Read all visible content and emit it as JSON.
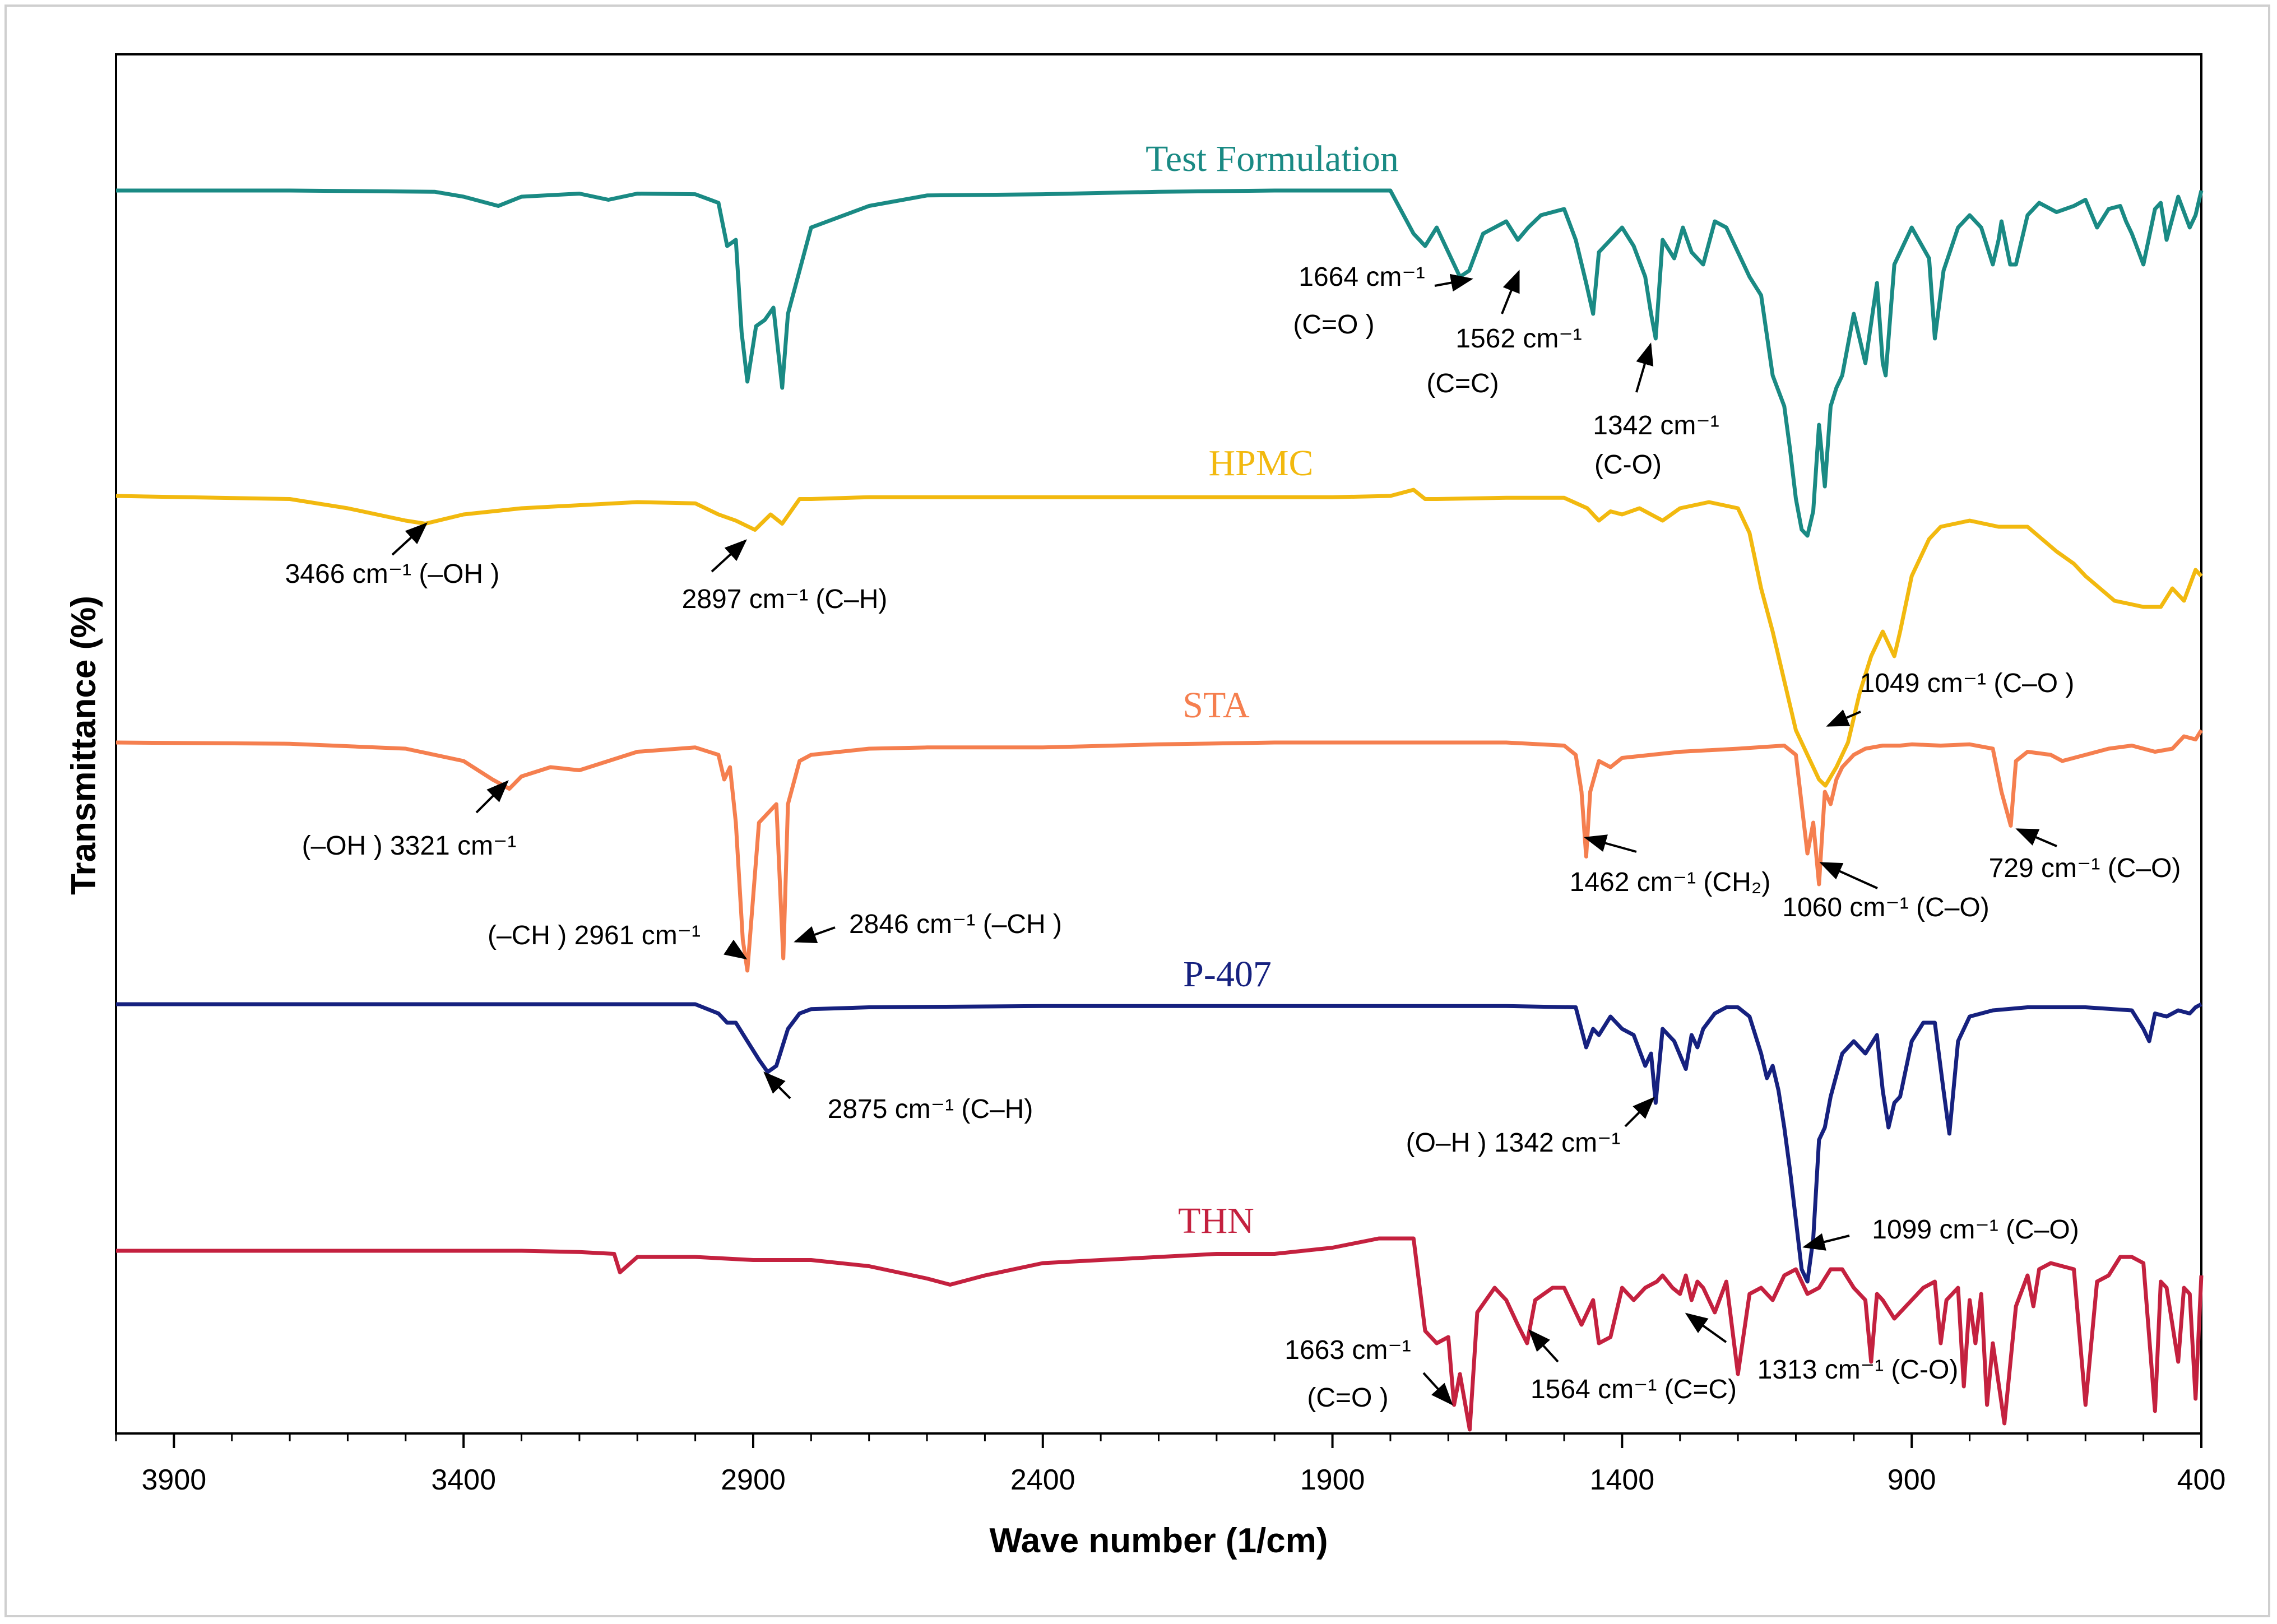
{
  "chart_data": {
    "type": "line",
    "xlabel": "Wave number (1/cm)",
    "ylabel": "Transmittance (%)",
    "xlim": [
      4000,
      400
    ],
    "x_ticks": [
      3900,
      3400,
      2900,
      2400,
      1900,
      1400,
      900,
      400
    ],
    "x_tick_labels": [
      "3900",
      "3400",
      "2900",
      "2400",
      "1900",
      "1400",
      "900",
      "400"
    ],
    "y_ticks_shown": false,
    "grid": false,
    "legend": "none (series labeled directly above each trace)",
    "y_scale_note": "stacked traces, relative transmittance (0 = baseline of trace, negative = absorption depth)",
    "series": [
      {
        "name": "Test Formulation",
        "color": "#1a8a84",
        "x": [
          4000,
          3700,
          3450,
          3400,
          3340,
          3300,
          3200,
          3150,
          3100,
          3000,
          2960,
          2945,
          2930,
          2920,
          2910,
          2895,
          2880,
          2865,
          2850,
          2840,
          2800,
          2700,
          2600,
          2400,
          2200,
          2000,
          1800,
          1760,
          1740,
          1720,
          1700,
          1680,
          1664,
          1640,
          1600,
          1580,
          1562,
          1540,
          1500,
          1480,
          1462,
          1450,
          1440,
          1420,
          1400,
          1380,
          1360,
          1350,
          1342,
          1330,
          1310,
          1295,
          1280,
          1260,
          1240,
          1220,
          1200,
          1180,
          1160,
          1140,
          1120,
          1110,
          1100,
          1090,
          1080,
          1070,
          1060,
          1050,
          1040,
          1030,
          1020,
          1000,
          980,
          960,
          950,
          945,
          930,
          900,
          870,
          860,
          845,
          820,
          800,
          780,
          760,
          750,
          745,
          730,
          720,
          700,
          680,
          650,
          620,
          600,
          580,
          560,
          540,
          530,
          520,
          500,
          480,
          470,
          460,
          440,
          420,
          410,
          400
        ],
        "y": [
          0,
          0,
          -2,
          -10,
          -25,
          -10,
          -5,
          -15,
          -5,
          -6,
          -20,
          -90,
          -80,
          -230,
          -310,
          -220,
          -210,
          -190,
          -320,
          -200,
          -60,
          -25,
          -8,
          -6,
          -2,
          0,
          0,
          -70,
          -90,
          -60,
          -100,
          -140,
          -130,
          -70,
          -50,
          -80,
          -60,
          -40,
          -30,
          -80,
          -150,
          -200,
          -100,
          -80,
          -60,
          -90,
          -140,
          -200,
          -240,
          -80,
          -110,
          -60,
          -100,
          -120,
          -50,
          -60,
          -100,
          -140,
          -170,
          -300,
          -350,
          -420,
          -500,
          -550,
          -560,
          -520,
          -380,
          -480,
          -350,
          -320,
          -300,
          -200,
          -280,
          -150,
          -280,
          -300,
          -120,
          -60,
          -110,
          -240,
          -130,
          -60,
          -40,
          -60,
          -120,
          -80,
          -50,
          -120,
          -120,
          -40,
          -20,
          -35,
          -25,
          -15,
          -60,
          -30,
          -25,
          -50,
          -70,
          -120,
          -30,
          -20,
          -80,
          -10,
          -60,
          -40,
          0
        ]
      },
      {
        "name": "HPMC",
        "color": "#f2b90f",
        "x": [
          4000,
          3700,
          3600,
          3500,
          3466,
          3400,
          3300,
          3100,
          3000,
          2960,
          2930,
          2897,
          2870,
          2850,
          2820,
          2800,
          2700,
          2500,
          2300,
          2100,
          1900,
          1800,
          1760,
          1740,
          1720,
          1600,
          1500,
          1460,
          1440,
          1420,
          1400,
          1370,
          1330,
          1300,
          1250,
          1200,
          1180,
          1160,
          1140,
          1120,
          1100,
          1080,
          1060,
          1049,
          1030,
          1010,
          990,
          970,
          950,
          940,
          930,
          920,
          900,
          870,
          850,
          800,
          750,
          700,
          650,
          620,
          600,
          550,
          500,
          470,
          450,
          430,
          410,
          400
        ],
        "y": [
          0,
          -5,
          -20,
          -40,
          -45,
          -30,
          -20,
          -10,
          -12,
          -30,
          -40,
          -55,
          -30,
          -45,
          -5,
          -5,
          -2,
          -2,
          -2,
          -2,
          -2,
          0,
          10,
          -5,
          -5,
          -3,
          -3,
          -20,
          -40,
          -25,
          -30,
          -20,
          -40,
          -20,
          -10,
          -20,
          -60,
          -150,
          -220,
          -300,
          -380,
          -420,
          -460,
          -470,
          -440,
          -400,
          -320,
          -260,
          -220,
          -240,
          -260,
          -220,
          -130,
          -70,
          -50,
          -40,
          -50,
          -50,
          -90,
          -110,
          -130,
          -170,
          -180,
          -180,
          -150,
          -170,
          -120,
          -130
        ]
      },
      {
        "name": "STA",
        "color": "#f57f4f",
        "x": [
          4000,
          3700,
          3500,
          3400,
          3350,
          3321,
          3300,
          3250,
          3200,
          3100,
          3000,
          2960,
          2950,
          2940,
          2930,
          2918,
          2910,
          2890,
          2860,
          2848,
          2840,
          2820,
          2800,
          2700,
          2600,
          2400,
          2200,
          2000,
          1800,
          1600,
          1500,
          1480,
          1470,
          1462,
          1455,
          1440,
          1420,
          1400,
          1300,
          1200,
          1120,
          1100,
          1090,
          1080,
          1070,
          1060,
          1050,
          1040,
          1030,
          1020,
          1000,
          980,
          950,
          920,
          900,
          850,
          800,
          760,
          745,
          729,
          720,
          700,
          660,
          640,
          600,
          560,
          520,
          480,
          450,
          430,
          410,
          400
        ],
        "y": [
          0,
          -2,
          -10,
          -30,
          -60,
          -75,
          -55,
          -40,
          -45,
          -15,
          -8,
          -20,
          -60,
          -40,
          -130,
          -320,
          -370,
          -130,
          -100,
          -350,
          -100,
          -30,
          -20,
          -10,
          -8,
          -8,
          -3,
          0,
          0,
          0,
          -5,
          -20,
          -80,
          -185,
          -80,
          -30,
          -40,
          -25,
          -15,
          -10,
          -5,
          -20,
          -100,
          -180,
          -130,
          -230,
          -80,
          -100,
          -60,
          -40,
          -20,
          -10,
          -5,
          -5,
          -3,
          -5,
          -3,
          -10,
          -80,
          -135,
          -30,
          -15,
          -20,
          -30,
          -20,
          -10,
          -5,
          -15,
          -10,
          10,
          5,
          20
        ]
      },
      {
        "name": "P-407",
        "color": "#16217f",
        "x": [
          4000,
          3700,
          3400,
          3000,
          2960,
          2945,
          2930,
          2910,
          2890,
          2875,
          2860,
          2840,
          2820,
          2800,
          2700,
          2400,
          2200,
          2000,
          1800,
          1600,
          1480,
          1462,
          1450,
          1440,
          1420,
          1400,
          1380,
          1360,
          1350,
          1342,
          1330,
          1310,
          1290,
          1280,
          1270,
          1260,
          1240,
          1220,
          1200,
          1180,
          1160,
          1150,
          1140,
          1130,
          1120,
          1110,
          1100,
          1090,
          1080,
          1070,
          1060,
          1050,
          1040,
          1020,
          1000,
          980,
          960,
          950,
          940,
          930,
          920,
          900,
          880,
          860,
          845,
          835,
          820,
          800,
          760,
          700,
          600,
          520,
          500,
          490,
          480,
          460,
          440,
          420,
          410,
          400
        ],
        "y": [
          0,
          0,
          0,
          0,
          -15,
          -30,
          -30,
          -60,
          -90,
          -110,
          -100,
          -40,
          -15,
          -8,
          -5,
          -3,
          -3,
          -3,
          -3,
          -3,
          -5,
          -70,
          -40,
          -50,
          -20,
          -40,
          -50,
          -100,
          -80,
          -160,
          -40,
          -60,
          -105,
          -50,
          -70,
          -40,
          -15,
          -5,
          -5,
          -20,
          -80,
          -120,
          -100,
          -140,
          -200,
          -270,
          -350,
          -430,
          -450,
          -380,
          -220,
          -200,
          -150,
          -80,
          -60,
          -80,
          -50,
          -140,
          -200,
          -160,
          -150,
          -60,
          -30,
          -30,
          -140,
          -210,
          -60,
          -20,
          -10,
          -5,
          -5,
          -10,
          -40,
          -60,
          -15,
          -20,
          -10,
          -15,
          -5,
          0
        ]
      },
      {
        "name": "THN",
        "color": "#c4213f",
        "x": [
          4000,
          3700,
          3300,
          3200,
          3140,
          3130,
          3100,
          3000,
          2900,
          2800,
          2700,
          2600,
          2560,
          2500,
          2400,
          2300,
          2200,
          2100,
          2000,
          1900,
          1820,
          1760,
          1740,
          1720,
          1700,
          1690,
          1680,
          1663,
          1650,
          1620,
          1600,
          1580,
          1564,
          1550,
          1520,
          1500,
          1480,
          1470,
          1450,
          1440,
          1420,
          1400,
          1380,
          1360,
          1340,
          1330,
          1313,
          1300,
          1290,
          1280,
          1270,
          1260,
          1240,
          1220,
          1200,
          1180,
          1160,
          1140,
          1120,
          1100,
          1080,
          1060,
          1040,
          1020,
          1000,
          980,
          970,
          960,
          950,
          930,
          900,
          880,
          860,
          850,
          840,
          820,
          810,
          800,
          790,
          780,
          770,
          760,
          740,
          720,
          700,
          690,
          680,
          660,
          620,
          600,
          580,
          560,
          540,
          520,
          500,
          480,
          470,
          460,
          440,
          430,
          420,
          410,
          400
        ],
        "y": [
          0,
          0,
          0,
          -2,
          -5,
          -35,
          -10,
          -10,
          -15,
          -15,
          -25,
          -45,
          -55,
          -40,
          -20,
          -15,
          -10,
          -5,
          -5,
          5,
          20,
          20,
          -130,
          -150,
          -140,
          -250,
          -200,
          -290,
          -100,
          -60,
          -80,
          -120,
          -150,
          -80,
          -60,
          -60,
          -100,
          -120,
          -80,
          -150,
          -140,
          -60,
          -80,
          -60,
          -50,
          -40,
          -60,
          -70,
          -40,
          -80,
          -50,
          -60,
          -100,
          -50,
          -200,
          -70,
          -60,
          -80,
          -40,
          -30,
          -70,
          -60,
          -30,
          -30,
          -60,
          -80,
          -180,
          -70,
          -80,
          -110,
          -80,
          -60,
          -50,
          -150,
          -80,
          -60,
          -220,
          -80,
          -150,
          -70,
          -250,
          -150,
          -280,
          -90,
          -40,
          -90,
          -30,
          -20,
          -30,
          -250,
          -50,
          -40,
          -10,
          -10,
          -20,
          -260,
          -50,
          -60,
          -180,
          -60,
          -70,
          -240,
          -40
        ]
      }
    ],
    "annotations": [
      {
        "series": "Test Formulation",
        "text": "1664 cm⁻¹",
        "sub": "(C=O )",
        "x": 1664
      },
      {
        "series": "Test Formulation",
        "text": "1562 cm⁻¹",
        "sub": "(C=C)",
        "x": 1562
      },
      {
        "series": "Test Formulation",
        "text": "1342 cm⁻¹",
        "sub": "(C-O)",
        "x": 1342
      },
      {
        "series": "HPMC",
        "text": "3466 cm⁻¹  (–OH )",
        "x": 3466
      },
      {
        "series": "HPMC",
        "text": "2897 cm⁻¹ (C–H)",
        "x": 2897
      },
      {
        "series": "HPMC",
        "text": "1049  cm⁻¹ (C–O )",
        "x": 1049
      },
      {
        "series": "STA",
        "text": "(–OH ) 3321 cm⁻¹",
        "x": 3321
      },
      {
        "series": "STA",
        "text": "(–CH ) 2961 cm⁻¹",
        "x": 2918
      },
      {
        "series": "STA",
        "text": "2846 cm⁻¹ (–CH )",
        "x": 2848
      },
      {
        "series": "STA",
        "text": "1462 cm⁻¹  (CH₂)",
        "x": 1462
      },
      {
        "series": "STA",
        "text": "1060 cm⁻¹ (C–O)",
        "x": 1060
      },
      {
        "series": "STA",
        "text": "729 cm⁻¹ (C–O)",
        "x": 729
      },
      {
        "series": "P-407",
        "text": "2875 cm⁻¹ (C–H)",
        "x": 2875
      },
      {
        "series": "P-407",
        "text": "(O–H ) 1342 cm⁻¹",
        "x": 1342
      },
      {
        "series": "P-407",
        "text": "1099 cm⁻¹ (C–O)",
        "x": 1080
      },
      {
        "series": "THN",
        "text": "1663 cm⁻¹",
        "sub": "(C=O )",
        "x": 1663
      },
      {
        "series": "THN",
        "text": "1564 cm⁻¹ (C=C)",
        "x": 1564
      },
      {
        "series": "THN",
        "text": "1313 cm⁻¹ (C-O)",
        "x": 1313
      }
    ]
  }
}
